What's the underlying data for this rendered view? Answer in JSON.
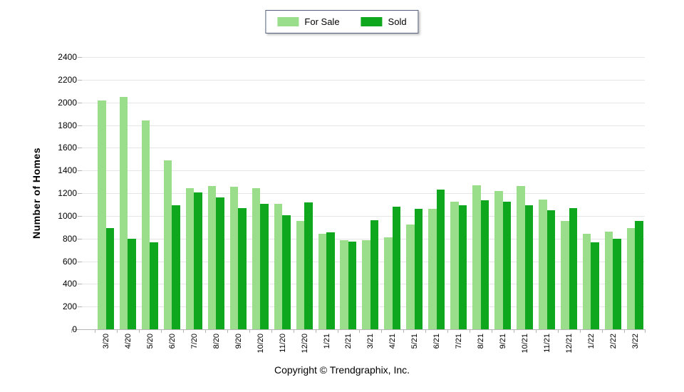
{
  "footer": {
    "copyright": "Copyright © Trendgraphix, Inc."
  },
  "colors": {
    "for_sale": "#9ADE8C",
    "sold": "#0FA71E",
    "gridline": "#e6e6e6",
    "axis": "#b5b5b5",
    "legend_border": "#55607a",
    "text": "#000000"
  },
  "chart_data": {
    "type": "bar",
    "title": "",
    "xlabel": "",
    "ylabel": "Number of Homes",
    "ylim": [
      0,
      2400
    ],
    "ytick_step": 200,
    "grid": true,
    "legend_position": "top-center",
    "categories": [
      "3/20",
      "4/20",
      "5/20",
      "6/20",
      "7/20",
      "8/20",
      "9/20",
      "10/20",
      "11/20",
      "12/20",
      "1/21",
      "2/21",
      "3/21",
      "4/21",
      "5/21",
      "6/21",
      "7/21",
      "8/21",
      "9/21",
      "10/21",
      "11/21",
      "12/21",
      "1/22",
      "2/22",
      "3/22"
    ],
    "series": [
      {
        "name": "For Sale",
        "color": "#9ADE8C",
        "values": [
          2020,
          2050,
          1840,
          1490,
          1245,
          1265,
          1255,
          1245,
          1105,
          955,
          845,
          785,
          785,
          810,
          925,
          1060,
          1125,
          1270,
          1220,
          1260,
          1145,
          955,
          845,
          860,
          890
        ]
      },
      {
        "name": "Sold",
        "color": "#0FA71E",
        "values": [
          890,
          800,
          765,
          1095,
          1205,
          1160,
          1070,
          1105,
          1005,
          1120,
          855,
          770,
          960,
          1080,
          1065,
          1230,
          1095,
          1140,
          1125,
          1095,
          1050,
          1070,
          765,
          800,
          955
        ]
      }
    ]
  }
}
